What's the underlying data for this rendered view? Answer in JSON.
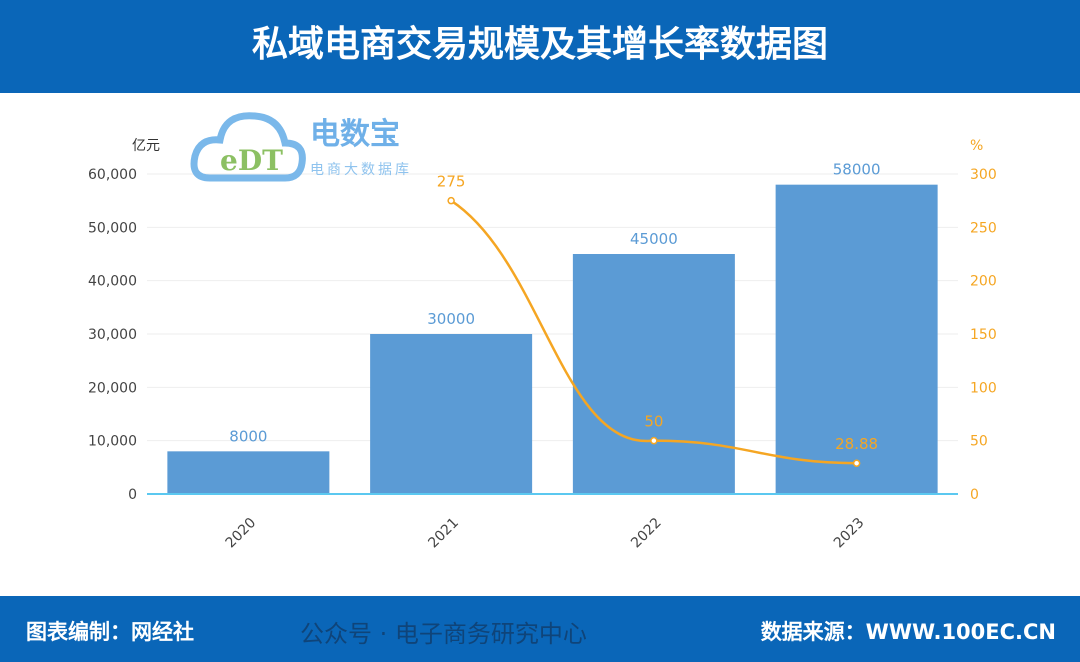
{
  "header": {
    "title": "私域电商交易规模及其增长率数据图"
  },
  "footer": {
    "producer": "图表编制：网经社",
    "source": "数据来源：WWW.100EC.CN",
    "watermark": "公众号 · 电子商务研究中心"
  },
  "logo": {
    "mark": "eDT",
    "name": "电数宝",
    "tagline": "电商大数据库"
  },
  "colors": {
    "bar": "#5b9bd5",
    "line": "#f5a623",
    "axis": "#5bc8f0"
  },
  "chart_data": {
    "type": "bar+line",
    "categories": [
      "2020",
      "2021",
      "2022",
      "2023"
    ],
    "y_left": {
      "unit": "亿元",
      "range": [
        0,
        60000
      ],
      "ticks": [
        "0",
        "10,000",
        "20,000",
        "30,000",
        "40,000",
        "50,000",
        "60,000"
      ]
    },
    "y_right": {
      "unit": "%",
      "range": [
        0,
        300
      ],
      "ticks": [
        "0",
        "50",
        "100",
        "150",
        "200",
        "250",
        "300"
      ]
    },
    "series": [
      {
        "type": "bar",
        "axis": "left",
        "values": [
          8000,
          30000,
          45000,
          58000
        ],
        "labels": [
          "8000",
          "30000",
          "45000",
          "58000"
        ]
      },
      {
        "type": "line",
        "axis": "right",
        "values": [
          null,
          275,
          50,
          28.88
        ],
        "labels": [
          "",
          "275",
          "50",
          "28.88"
        ]
      }
    ],
    "grid": true
  }
}
